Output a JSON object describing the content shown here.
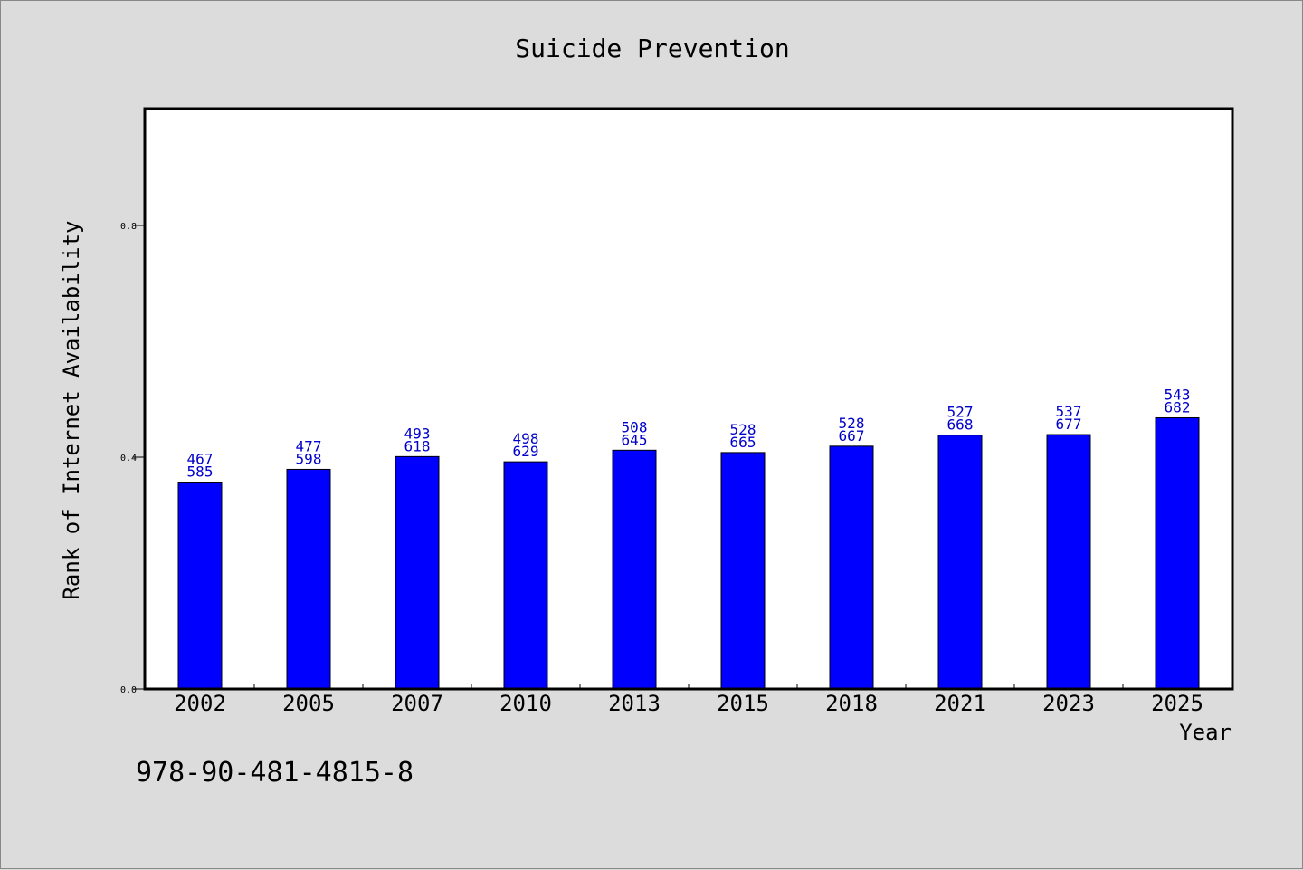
{
  "chart_data": {
    "type": "bar",
    "title": "Suicide Prevention",
    "xlabel": "Year",
    "ylabel": "Rank of Internet Availability",
    "ylim": [
      0,
      1.0
    ],
    "yticks": [
      "0.0",
      "0.4",
      "0.8"
    ],
    "categories": [
      "2002",
      "2005",
      "2007",
      "2010",
      "2013",
      "2015",
      "2018",
      "2021",
      "2023",
      "2025"
    ],
    "values": [
      0.357,
      0.379,
      0.401,
      0.392,
      0.412,
      0.408,
      0.419,
      0.438,
      0.439,
      0.468
    ],
    "labels_top": [
      "467",
      "477",
      "493",
      "498",
      "508",
      "528",
      "528",
      "527",
      "537",
      "543"
    ],
    "labels_bottom": [
      "585",
      "598",
      "618",
      "629",
      "645",
      "665",
      "667",
      "668",
      "677",
      "682"
    ],
    "bar_color": "#0000ff",
    "label_color": "#0000cc",
    "grid": false,
    "legend": "none"
  },
  "footer": {
    "isbn": "978-90-481-4815-8"
  }
}
